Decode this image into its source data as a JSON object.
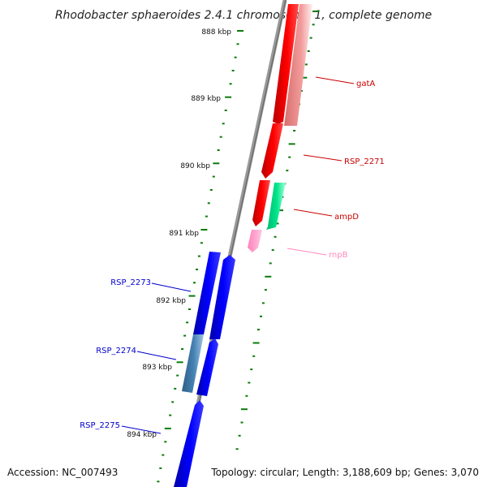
{
  "title": "Rhodobacter sphaeroides 2.4.1 chromosome 1, complete genome",
  "footer": {
    "accession": "Accession: NC_007493",
    "summary": "Topology: circular; Length: 3,188,609 bp; Genes: 3,070"
  },
  "colors": {
    "backbone": "#808080",
    "tick": "#0a7a0a",
    "forward_gene": "#ff0000",
    "forward_gene_faded": "#f08080",
    "reverse_gene": "#0000ff",
    "reverse_gene_faded": "#4682b4",
    "ampD": "#00e68a",
    "rnpB": "#ff99cc"
  },
  "ticks": [
    {
      "label": "888 kbp"
    },
    {
      "label": "889 kbp"
    },
    {
      "label": "890 kbp"
    },
    {
      "label": "891 kbp"
    },
    {
      "label": "892 kbp"
    },
    {
      "label": "893 kbp"
    },
    {
      "label": "894 kbp"
    }
  ],
  "gene_labels": [
    {
      "name": "gatA",
      "color": "#cc0000"
    },
    {
      "name": "RSP_2271",
      "color": "#cc0000"
    },
    {
      "name": "ampD",
      "color": "#cc0000"
    },
    {
      "name": "rnpB",
      "color": "#ff88bb"
    },
    {
      "name": "RSP_2273",
      "color": "#0000cc"
    },
    {
      "name": "RSP_2274",
      "color": "#0000cc"
    },
    {
      "name": "RSP_2275",
      "color": "#0000cc"
    }
  ]
}
